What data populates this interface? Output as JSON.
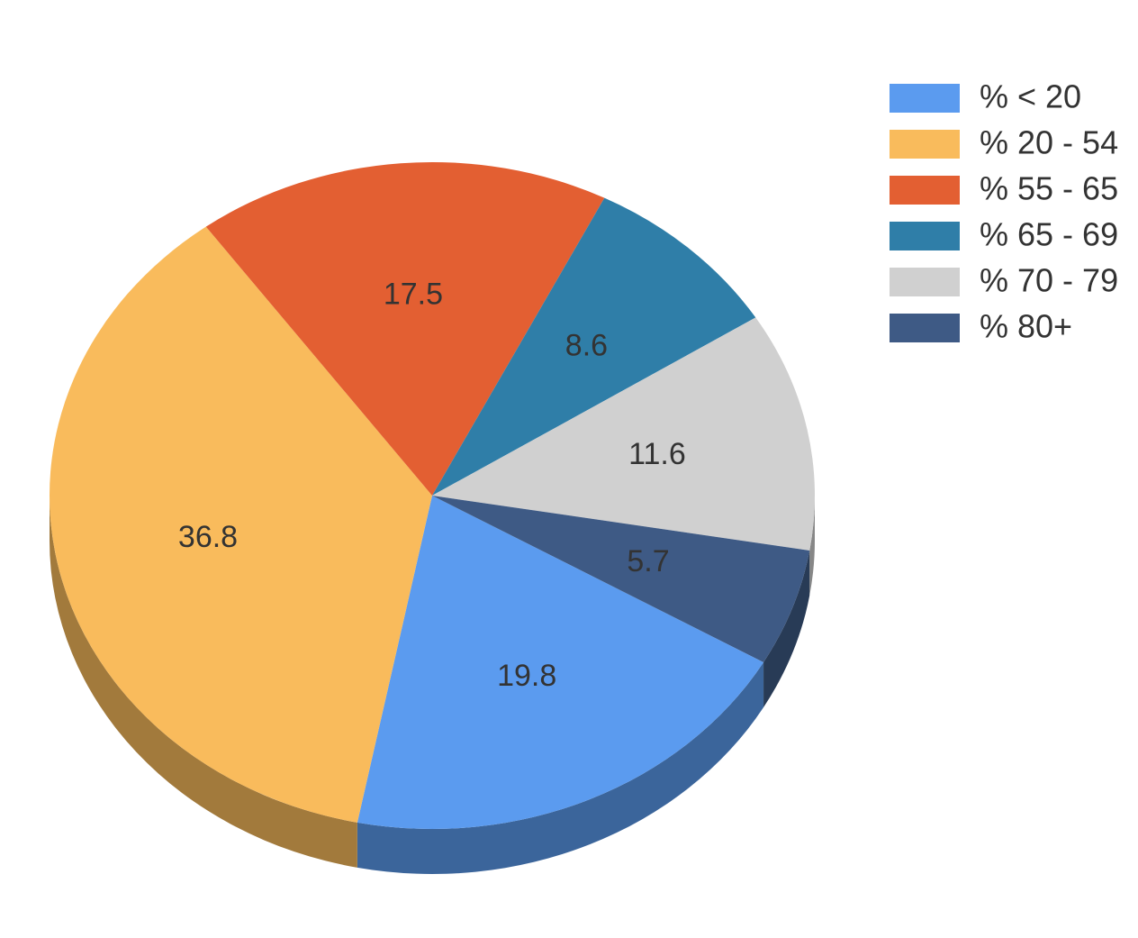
{
  "chart_data": {
    "type": "pie",
    "categories": [
      "% < 20",
      "% 20 - 54",
      "% 55 - 65",
      "% 65 - 69",
      "% 70 - 79",
      "% 80+"
    ],
    "values": [
      19.8,
      36.8,
      17.5,
      8.6,
      11.6,
      5.7
    ],
    "colors": [
      "#5b9bef",
      "#f9bb5c",
      "#e35f32",
      "#2f7ea8",
      "#d0d0d0",
      "#3e5a85"
    ],
    "legend": "top-right"
  }
}
